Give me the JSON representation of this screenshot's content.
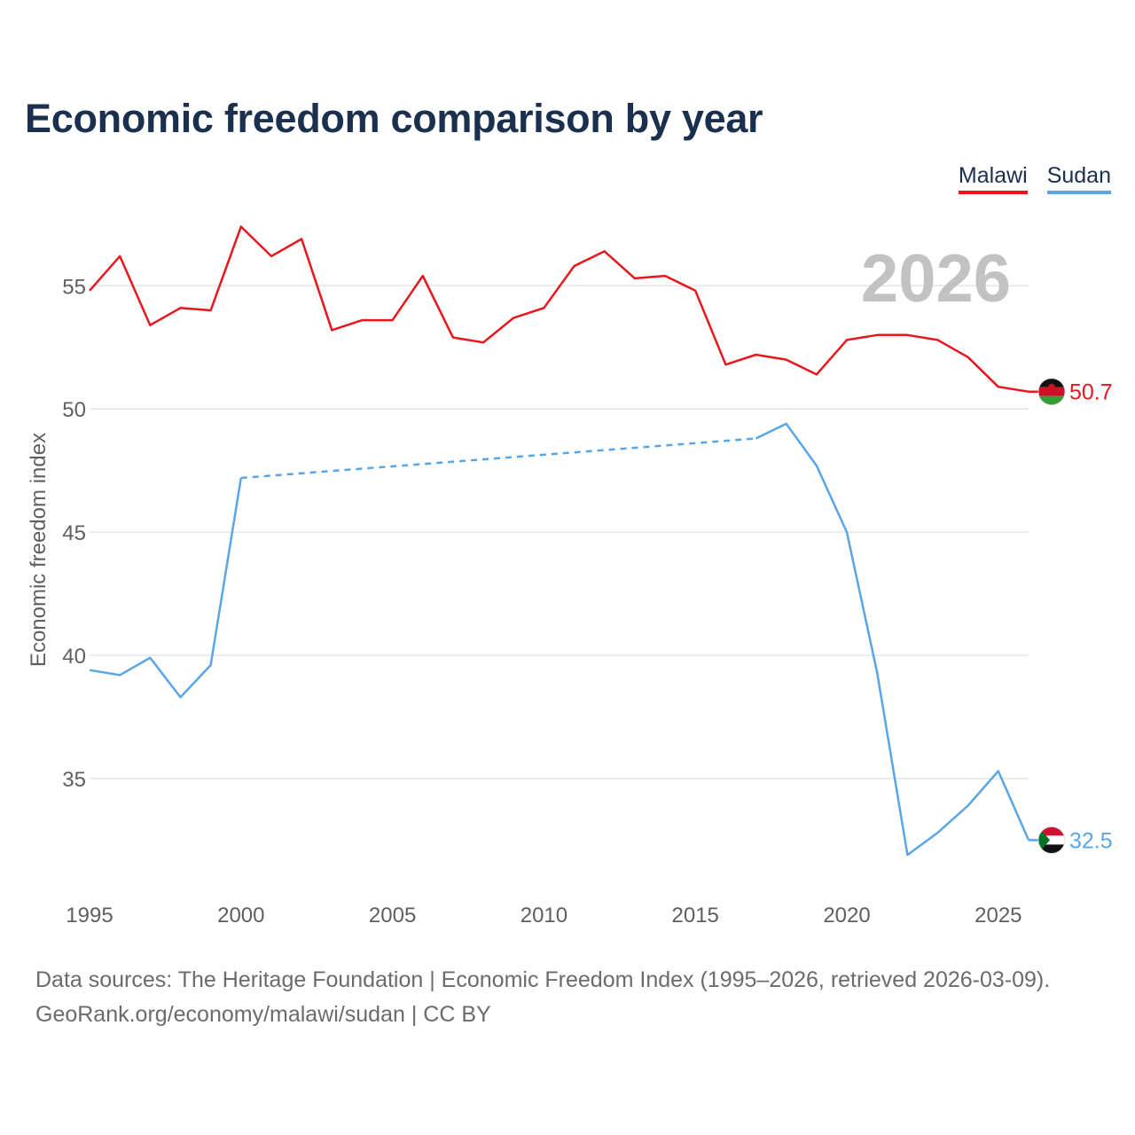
{
  "chart_data": {
    "type": "line",
    "title": "Economic freedom comparison by year",
    "ylabel": "Economic freedom index",
    "xlabel": "",
    "xlim": [
      1995,
      2026
    ],
    "ylim": [
      30.5,
      58.5
    ],
    "yticks": [
      35,
      40,
      45,
      50,
      55
    ],
    "xticks": [
      1995,
      2000,
      2005,
      2010,
      2015,
      2020,
      2025
    ],
    "current_year_label": "2026",
    "legend_position": "top-right",
    "series": [
      {
        "name": "Malawi",
        "color": "#e8161e",
        "end_label": "50.7",
        "x": [
          1995,
          1996,
          1997,
          1998,
          1999,
          2000,
          2001,
          2002,
          2003,
          2004,
          2005,
          2006,
          2007,
          2008,
          2009,
          2010,
          2011,
          2012,
          2013,
          2014,
          2015,
          2016,
          2017,
          2018,
          2019,
          2020,
          2021,
          2022,
          2023,
          2024,
          2025,
          2026
        ],
        "values": [
          54.8,
          56.2,
          53.4,
          54.1,
          54.0,
          57.4,
          56.2,
          56.9,
          53.2,
          53.6,
          53.6,
          55.4,
          52.9,
          52.7,
          53.7,
          54.1,
          55.8,
          56.4,
          55.3,
          55.4,
          54.8,
          51.8,
          52.2,
          52.0,
          51.4,
          52.8,
          53.0,
          53.0,
          52.8,
          52.1,
          50.9,
          50.7
        ]
      },
      {
        "name": "Sudan",
        "color": "#5aa5e6",
        "end_label": "32.5",
        "x": [
          1995,
          1996,
          1997,
          1998,
          1999,
          2000,
          2017,
          2018,
          2019,
          2020,
          2021,
          2022,
          2023,
          2024,
          2025,
          2026
        ],
        "values": [
          39.4,
          39.2,
          39.9,
          38.3,
          39.6,
          47.2,
          48.8,
          49.4,
          47.7,
          45.0,
          39.3,
          31.9,
          32.8,
          33.9,
          35.3,
          32.5
        ],
        "interpolated_gap": [
          2000,
          2017
        ]
      }
    ]
  },
  "footer": {
    "sources": "Data sources: The Heritage Foundation | Economic Freedom Index (1995–2026, retrieved 2026-03-09).",
    "credit": "GeoRank.org/economy/malawi/sudan | CC BY"
  }
}
